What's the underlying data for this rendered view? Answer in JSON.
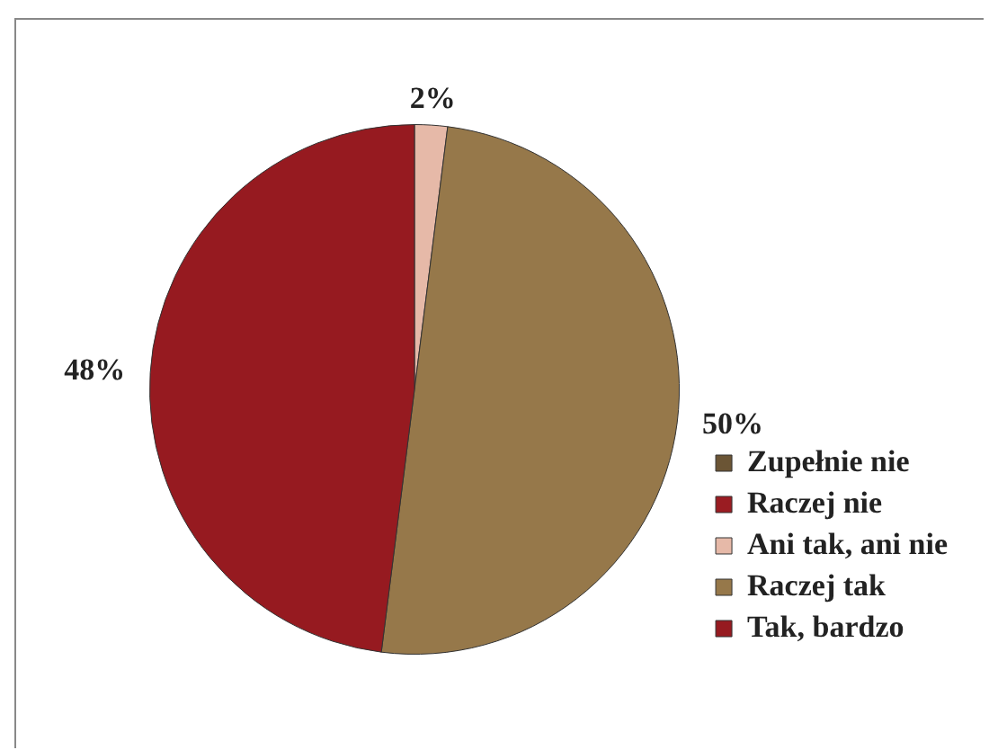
{
  "chart_data": {
    "type": "pie",
    "categories": [
      "Zupełnie nie",
      "Raczej nie",
      "Ani tak, ani nie",
      "Raczej tak",
      "Tak, bardzo"
    ],
    "values": [
      0,
      0,
      2,
      50,
      48
    ],
    "value_labels": [
      null,
      null,
      "2%",
      "50%",
      "48%"
    ],
    "colors": [
      "#6b5535",
      "#9a1c22",
      "#e6b9a8",
      "#96784a",
      "#961a20"
    ],
    "legend": "right"
  }
}
